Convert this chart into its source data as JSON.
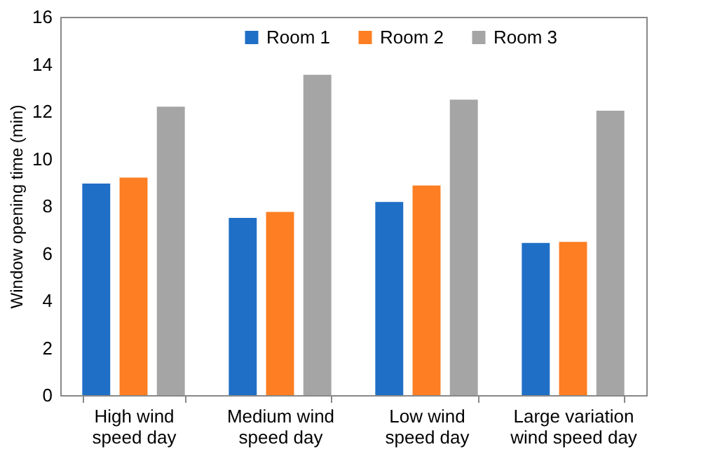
{
  "chart_data": {
    "type": "bar",
    "ylabel": "Window opening time (min)",
    "categories": [
      "High wind speed day",
      "Medium wind speed day",
      "Low wind speed day",
      "Large variation wind speed day"
    ],
    "series": [
      {
        "name": "Room 1",
        "color": "#1f6fc6",
        "values": [
          8.95,
          7.5,
          8.17,
          6.44
        ]
      },
      {
        "name": "Room 2",
        "color": "#fd7e23",
        "values": [
          9.2,
          7.75,
          8.87,
          6.48
        ]
      },
      {
        "name": "Room 3",
        "color": "#a5a5a5",
        "values": [
          12.2,
          13.55,
          12.5,
          12.03
        ]
      }
    ],
    "ylim": [
      0,
      16
    ],
    "yticks": [
      0,
      2,
      4,
      6,
      8,
      10,
      12,
      14,
      16
    ],
    "grid": false,
    "legend": "top"
  }
}
